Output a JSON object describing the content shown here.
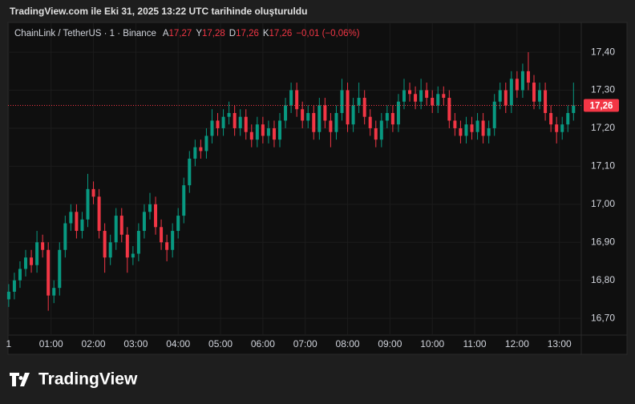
{
  "header": {
    "title": "TradingView.com ile Eki 31, 2025 13:22 UTC tarihinde oluşturuldu"
  },
  "legend": {
    "symbol": "ChainLink / TetherUS · 1 · Binance",
    "fields": [
      {
        "label": "A",
        "value": "17,27"
      },
      {
        "label": "Y",
        "value": "17,28"
      },
      {
        "label": "D",
        "value": "17,26"
      },
      {
        "label": "K",
        "value": "17,26"
      }
    ],
    "change": "−0,01 (−0,06%)"
  },
  "footer": {
    "brand": "TradingView"
  },
  "chart_data": {
    "type": "candlestick",
    "up_color": "#089981",
    "down_color": "#f23645",
    "grid": true,
    "xlim": [
      -1,
      811
    ],
    "ylim": [
      16.656,
      17.474
    ],
    "xticks": [
      {
        "value": 0,
        "label": "1"
      },
      {
        "value": 60,
        "label": "01:00"
      },
      {
        "value": 120,
        "label": "02:00"
      },
      {
        "value": 180,
        "label": "03:00"
      },
      {
        "value": 240,
        "label": "04:00"
      },
      {
        "value": 300,
        "label": "05:00"
      },
      {
        "value": 360,
        "label": "06:00"
      },
      {
        "value": 420,
        "label": "07:00"
      },
      {
        "value": 480,
        "label": "08:00"
      },
      {
        "value": 540,
        "label": "09:00"
      },
      {
        "value": 600,
        "label": "10:00"
      },
      {
        "value": 660,
        "label": "11:00"
      },
      {
        "value": 720,
        "label": "12:00"
      },
      {
        "value": 780,
        "label": "13:00"
      }
    ],
    "yticks": [
      {
        "value": 16.7,
        "label": "16,70"
      },
      {
        "value": 16.8,
        "label": "16,80"
      },
      {
        "value": 16.9,
        "label": "16,90"
      },
      {
        "value": 17.0,
        "label": "17,00"
      },
      {
        "value": 17.1,
        "label": "17,10"
      },
      {
        "value": 17.2,
        "label": "17,20"
      },
      {
        "value": 17.3,
        "label": "17,30"
      },
      {
        "value": 17.4,
        "label": "17,40"
      }
    ],
    "last_price": {
      "value": 17.26,
      "label": "17,26",
      "color": "#f23645"
    },
    "x": [
      0,
      8,
      16,
      24,
      32,
      40,
      48,
      56,
      64,
      72,
      80,
      88,
      96,
      104,
      112,
      120,
      128,
      136,
      144,
      152,
      160,
      168,
      176,
      184,
      192,
      200,
      208,
      216,
      224,
      232,
      240,
      248,
      256,
      264,
      272,
      280,
      288,
      296,
      304,
      312,
      320,
      328,
      336,
      344,
      352,
      360,
      368,
      376,
      384,
      392,
      400,
      408,
      416,
      424,
      432,
      440,
      448,
      456,
      464,
      472,
      480,
      488,
      496,
      504,
      512,
      520,
      528,
      536,
      544,
      552,
      560,
      568,
      576,
      584,
      592,
      600,
      608,
      616,
      624,
      632,
      640,
      648,
      656,
      664,
      672,
      680,
      688,
      696,
      704,
      712,
      720,
      728,
      736,
      744,
      752,
      760,
      768,
      776,
      784,
      792,
      800
    ],
    "open": [
      16.75,
      16.77,
      16.8,
      16.83,
      16.86,
      16.84,
      16.9,
      16.88,
      16.76,
      16.78,
      16.88,
      16.95,
      16.98,
      16.93,
      16.96,
      17.04,
      17.02,
      16.93,
      16.86,
      16.9,
      16.97,
      16.92,
      16.86,
      16.87,
      16.93,
      16.98,
      17.0,
      16.94,
      16.9,
      16.88,
      16.93,
      16.97,
      17.05,
      17.12,
      17.15,
      17.14,
      17.18,
      17.22,
      17.2,
      17.23,
      17.24,
      17.2,
      17.23,
      17.19,
      17.17,
      17.21,
      17.18,
      17.2,
      17.17,
      17.22,
      17.26,
      17.3,
      17.25,
      17.22,
      17.24,
      17.19,
      17.26,
      17.22,
      17.19,
      17.24,
      17.3,
      17.21,
      17.26,
      17.28,
      17.23,
      17.2,
      17.17,
      17.22,
      17.24,
      17.21,
      17.27,
      17.3,
      17.29,
      17.27,
      17.3,
      17.28,
      17.26,
      17.29,
      17.28,
      17.22,
      17.2,
      17.18,
      17.21,
      17.19,
      17.22,
      17.18,
      17.2,
      17.27,
      17.3,
      17.26,
      17.33,
      17.3,
      17.35,
      17.32,
      17.27,
      17.3,
      17.24,
      17.21,
      17.19,
      17.21,
      17.24
    ],
    "high": [
      16.79,
      16.82,
      16.85,
      16.88,
      16.88,
      16.93,
      16.92,
      16.9,
      16.8,
      16.9,
      16.97,
      17.0,
      17.0,
      16.98,
      17.08,
      17.06,
      17.04,
      16.95,
      16.92,
      16.99,
      16.99,
      16.94,
      16.89,
      16.95,
      17.0,
      17.03,
      17.02,
      16.96,
      16.92,
      16.95,
      16.99,
      17.07,
      17.14,
      17.17,
      17.17,
      17.2,
      17.25,
      17.24,
      17.25,
      17.27,
      17.26,
      17.25,
      17.25,
      17.21,
      17.23,
      17.23,
      17.22,
      17.22,
      17.24,
      17.28,
      17.32,
      17.32,
      17.27,
      17.26,
      17.26,
      17.28,
      17.28,
      17.24,
      17.26,
      17.33,
      17.32,
      17.28,
      17.32,
      17.3,
      17.25,
      17.22,
      17.24,
      17.26,
      17.26,
      17.29,
      17.33,
      17.32,
      17.31,
      17.33,
      17.32,
      17.3,
      17.31,
      17.31,
      17.3,
      17.24,
      17.22,
      17.23,
      17.23,
      17.24,
      17.24,
      17.22,
      17.29,
      17.32,
      17.32,
      17.35,
      17.35,
      17.37,
      17.4,
      17.34,
      17.32,
      17.32,
      17.26,
      17.23,
      17.23,
      17.26,
      17.32
    ],
    "low": [
      16.73,
      16.75,
      16.78,
      16.81,
      16.82,
      16.82,
      16.86,
      16.72,
      16.74,
      16.76,
      16.86,
      16.93,
      16.91,
      16.91,
      16.94,
      17.0,
      16.91,
      16.82,
      16.84,
      16.88,
      16.9,
      16.82,
      16.84,
      16.85,
      16.91,
      16.96,
      16.92,
      16.88,
      16.85,
      16.86,
      16.91,
      16.95,
      17.03,
      17.1,
      17.12,
      17.12,
      17.16,
      17.18,
      17.18,
      17.21,
      17.18,
      17.18,
      17.17,
      17.15,
      17.15,
      17.16,
      17.16,
      17.15,
      17.15,
      17.2,
      17.24,
      17.23,
      17.2,
      17.2,
      17.17,
      17.17,
      17.2,
      17.15,
      17.17,
      17.22,
      17.19,
      17.19,
      17.24,
      17.21,
      17.18,
      17.15,
      17.15,
      17.2,
      17.19,
      17.19,
      17.25,
      17.27,
      17.25,
      17.25,
      17.26,
      17.24,
      17.24,
      17.26,
      17.2,
      17.18,
      17.16,
      17.16,
      17.17,
      17.17,
      17.16,
      17.16,
      17.18,
      17.25,
      17.24,
      17.24,
      17.28,
      17.28,
      17.3,
      17.25,
      17.25,
      17.22,
      17.19,
      17.16,
      17.17,
      17.19,
      17.22
    ],
    "close": [
      16.77,
      16.8,
      16.83,
      16.86,
      16.84,
      16.9,
      16.88,
      16.76,
      16.78,
      16.88,
      16.95,
      16.98,
      16.93,
      16.96,
      17.04,
      17.02,
      16.93,
      16.86,
      16.9,
      16.97,
      16.92,
      16.86,
      16.87,
      16.93,
      16.98,
      17.0,
      16.94,
      16.9,
      16.88,
      16.93,
      16.97,
      17.05,
      17.12,
      17.15,
      17.14,
      17.18,
      17.22,
      17.2,
      17.23,
      17.24,
      17.2,
      17.23,
      17.19,
      17.17,
      17.21,
      17.18,
      17.2,
      17.17,
      17.22,
      17.26,
      17.3,
      17.25,
      17.22,
      17.24,
      17.19,
      17.26,
      17.22,
      17.19,
      17.24,
      17.3,
      17.21,
      17.26,
      17.28,
      17.23,
      17.2,
      17.17,
      17.22,
      17.24,
      17.21,
      17.27,
      17.3,
      17.29,
      17.27,
      17.3,
      17.28,
      17.26,
      17.29,
      17.28,
      17.22,
      17.2,
      17.18,
      17.21,
      17.19,
      17.22,
      17.18,
      17.2,
      17.27,
      17.3,
      17.26,
      17.33,
      17.3,
      17.35,
      17.32,
      17.27,
      17.3,
      17.24,
      17.21,
      17.19,
      17.21,
      17.24,
      17.26
    ]
  }
}
